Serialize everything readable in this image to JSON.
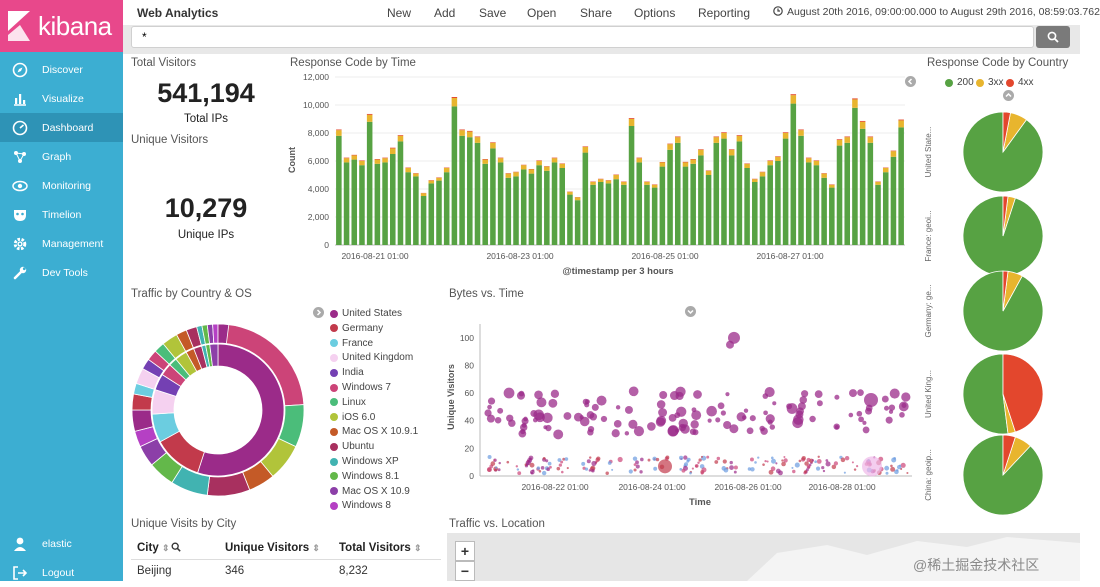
{
  "sidebar": {
    "logo": "kibana",
    "items": [
      {
        "label": "Discover",
        "icon": "compass-icon"
      },
      {
        "label": "Visualize",
        "icon": "bar-chart-icon"
      },
      {
        "label": "Dashboard",
        "icon": "dashboard-icon"
      },
      {
        "label": "Graph",
        "icon": "graph-icon"
      },
      {
        "label": "Monitoring",
        "icon": "eye-icon"
      },
      {
        "label": "Timelion",
        "icon": "mask-icon"
      },
      {
        "label": "Management",
        "icon": "gear-icon"
      },
      {
        "label": "Dev Tools",
        "icon": "wrench-icon"
      }
    ],
    "user": "elastic",
    "logout": "Logout"
  },
  "topbar": {
    "title": "Web Analytics",
    "menu": [
      "New",
      "Add",
      "Save",
      "Open",
      "Share",
      "Options",
      "Reporting"
    ],
    "time_range": "August 20th 2016, 09:00:00.000 to August 29th 2016, 08:59:03.762"
  },
  "search": {
    "value": "*"
  },
  "metrics": {
    "total_visitors_title": "Total Visitors",
    "total_ips": "541,194",
    "total_ips_label": "Total IPs",
    "unique_visitors_title": "Unique Visitors",
    "unique_ips": "10,279",
    "unique_ips_label": "Unique IPs"
  },
  "response_chart": {
    "title": "Response Code by Time",
    "xlabel": "@timestamp per 3 hours",
    "ylabel": "Count",
    "yticks": [
      "0",
      "2,000",
      "4,000",
      "6,000",
      "8,000",
      "10,000",
      "12,000"
    ],
    "xticks": [
      "2016-08-21 01:00",
      "2016-08-23 01:00",
      "2016-08-25 01:00",
      "2016-08-27 01:00"
    ]
  },
  "chart_data": [
    {
      "type": "bar",
      "title": "Response Code by Time",
      "xlabel": "@timestamp per 3 hours",
      "ylabel": "Count",
      "ylim": [
        0,
        12000
      ],
      "stacked": true,
      "colors": [
        "#57a243",
        "#e8b52e",
        "#e3472d"
      ],
      "series": [
        {
          "name": "200",
          "values": [
            7800,
            5900,
            6100,
            5700,
            8800,
            5800,
            5900,
            6500,
            7400,
            5200,
            4900,
            3500,
            4400,
            4600,
            5200,
            9900,
            7800,
            7700,
            7300,
            5800,
            6900,
            5900,
            4800,
            4900,
            5400,
            5100,
            5700,
            5300,
            5900,
            5500,
            3600,
            3200,
            6600,
            4300,
            4500,
            4400,
            4700,
            4300,
            8500,
            5900,
            4300,
            4100,
            5600,
            6800,
            7300,
            5600,
            5800,
            6400,
            5000,
            7300,
            7600,
            6400,
            7400,
            5500,
            4500,
            4900,
            5700,
            6000,
            7600,
            10100,
            7800,
            5900,
            5700,
            4800,
            4100,
            7100,
            7300,
            9800,
            8300,
            7300,
            4300,
            5200,
            6300,
            8400
          ]
        },
        {
          "name": "3xx",
          "values": [
            400,
            300,
            300,
            300,
            500,
            300,
            300,
            400,
            400,
            300,
            200,
            200,
            200,
            200,
            300,
            600,
            400,
            400,
            400,
            300,
            400,
            300,
            300,
            300,
            300,
            300,
            300,
            300,
            300,
            300,
            200,
            200,
            400,
            200,
            200,
            200,
            300,
            200,
            500,
            300,
            200,
            200,
            300,
            400,
            400,
            300,
            300,
            400,
            300,
            400,
            400,
            400,
            400,
            300,
            200,
            300,
            300,
            300,
            400,
            600,
            400,
            300,
            300,
            300,
            200,
            400,
            400,
            600,
            500,
            400,
            200,
            300,
            400,
            500
          ]
        },
        {
          "name": "4xx",
          "values": [
            50,
            40,
            40,
            40,
            60,
            40,
            40,
            50,
            50,
            30,
            30,
            20,
            30,
            30,
            30,
            70,
            50,
            50,
            50,
            40,
            40,
            40,
            30,
            30,
            30,
            30,
            40,
            30,
            40,
            30,
            20,
            20,
            40,
            30,
            30,
            30,
            30,
            30,
            60,
            40,
            30,
            30,
            30,
            40,
            50,
            40,
            40,
            40,
            30,
            50,
            50,
            40,
            50,
            30,
            30,
            30,
            40,
            40,
            50,
            70,
            50,
            40,
            40,
            30,
            30,
            50,
            50,
            70,
            60,
            50,
            30,
            30,
            40,
            60
          ]
        }
      ]
    },
    {
      "type": "pie",
      "title": "Response Code by Country",
      "series": [
        "200",
        "3xx",
        "4xx"
      ],
      "pies": [
        {
          "label": "United State...",
          "values": [
            0.9,
            0.07,
            0.03
          ]
        },
        {
          "label": "France: geoi...",
          "values": [
            0.95,
            0.03,
            0.02
          ]
        },
        {
          "label": "Germany: ge...",
          "values": [
            0.92,
            0.06,
            0.02
          ]
        },
        {
          "label": "United King...",
          "values": [
            0.52,
            0.03,
            0.45
          ]
        },
        {
          "label": "China: geoip...",
          "values": [
            0.88,
            0.07,
            0.05
          ]
        }
      ]
    },
    {
      "type": "pie",
      "title": "Traffic by Country & OS",
      "legend": [
        {
          "name": "United States",
          "color": "#9b2b89"
        },
        {
          "name": "Germany",
          "color": "#c23a4b"
        },
        {
          "name": "France",
          "color": "#6bcde0"
        },
        {
          "name": "United Kingdom",
          "color": "#f5d1f0"
        },
        {
          "name": "India",
          "color": "#7440b3"
        },
        {
          "name": "Windows 7",
          "color": "#cc4478"
        },
        {
          "name": "Linux",
          "color": "#4bbd7a"
        },
        {
          "name": "iOS 6.0",
          "color": "#b1c43a"
        },
        {
          "name": "Mac OS X 10.9.1",
          "color": "#c45a27"
        },
        {
          "name": "Ubuntu",
          "color": "#a8305f"
        },
        {
          "name": "Windows XP",
          "color": "#41b3b1"
        },
        {
          "name": "Windows 8.1",
          "color": "#63b84a"
        },
        {
          "name": "Mac OS X 10.9",
          "color": "#8c3fa8"
        },
        {
          "name": "Windows 8",
          "color": "#b540c4"
        }
      ],
      "inner": [
        0.55,
        0.12,
        0.07,
        0.06,
        0.04,
        0.03,
        0.02,
        0.03,
        0.02,
        0.02,
        0.01,
        0.01,
        0.02
      ],
      "outer": [
        0.24,
        0.08,
        0.07,
        0.05,
        0.08,
        0.07,
        0.05,
        0.04,
        0.03,
        0.04,
        0.03,
        0.02,
        0.03,
        0.02,
        0.02,
        0.02,
        0.03,
        0.02,
        0.02,
        0.01,
        0.01,
        0.01,
        0.01,
        0.02
      ]
    },
    {
      "type": "scatter",
      "title": "Bytes vs. Time",
      "xlabel": "Time",
      "ylabel": "Unique Visitors",
      "ylim": [
        0,
        110
      ],
      "xticks": [
        "2016-08-22 01:00",
        "2016-08-24 01:00",
        "2016-08-26 01:00",
        "2016-08-28 01:00"
      ],
      "yticks": [
        "0",
        "20",
        "40",
        "60",
        "80",
        "100"
      ]
    }
  ],
  "traffic": {
    "title": "Traffic by Country & OS"
  },
  "bytes": {
    "title": "Bytes vs. Time",
    "xlabel": "Time",
    "ylabel": "Unique Visitors"
  },
  "country": {
    "title": "Response Code by Country",
    "legend": [
      {
        "name": "200",
        "color": "#57a243"
      },
      {
        "name": "3xx",
        "color": "#e8b52e"
      },
      {
        "name": "4xx",
        "color": "#e3472d"
      }
    ]
  },
  "city": {
    "title": "Unique Visits by City",
    "columns": [
      "City",
      "Unique Visitors",
      "Total Visitors"
    ],
    "rows": [
      [
        "Beijing",
        "346",
        "8,232"
      ]
    ]
  },
  "location": {
    "title": "Traffic vs. Location",
    "zoom_in": "+",
    "zoom_out": "−"
  },
  "watermark": "@稀土掘金技术社区"
}
